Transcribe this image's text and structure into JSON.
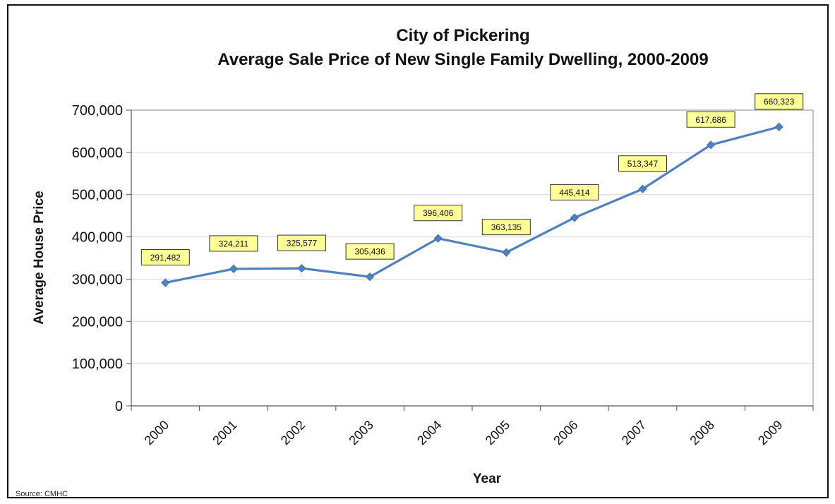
{
  "chart_data": {
    "type": "line",
    "title": "City of Pickering",
    "subtitle": "Average Sale Price of New Single Family Dwelling, 2000-2009",
    "xlabel": "Year",
    "ylabel": "Average House Price",
    "categories": [
      "2000",
      "2001",
      "2002",
      "2003",
      "2004",
      "2005",
      "2006",
      "2007",
      "2008",
      "2009"
    ],
    "series": [
      {
        "values": [
          291482,
          324211,
          325577,
          305436,
          396406,
          363135,
          445414,
          513347,
          617686,
          660323
        ],
        "labels": [
          "291,482",
          "324,211",
          "325,577",
          "305,436",
          "396,406",
          "363,135",
          "445,414",
          "513,347",
          "617,686",
          "660,323"
        ],
        "color": "#4f81bd"
      }
    ],
    "ylim": [
      0,
      700000
    ],
    "yticks": [
      0,
      100000,
      200000,
      300000,
      400000,
      500000,
      600000,
      700000
    ],
    "ytick_labels": [
      "0",
      "100,000",
      "200,000",
      "300,000",
      "400,000",
      "500,000",
      "600,000",
      "700,000"
    ],
    "grid": true,
    "data_label_fill": "#ffff99",
    "source": "Source: CMHC"
  }
}
